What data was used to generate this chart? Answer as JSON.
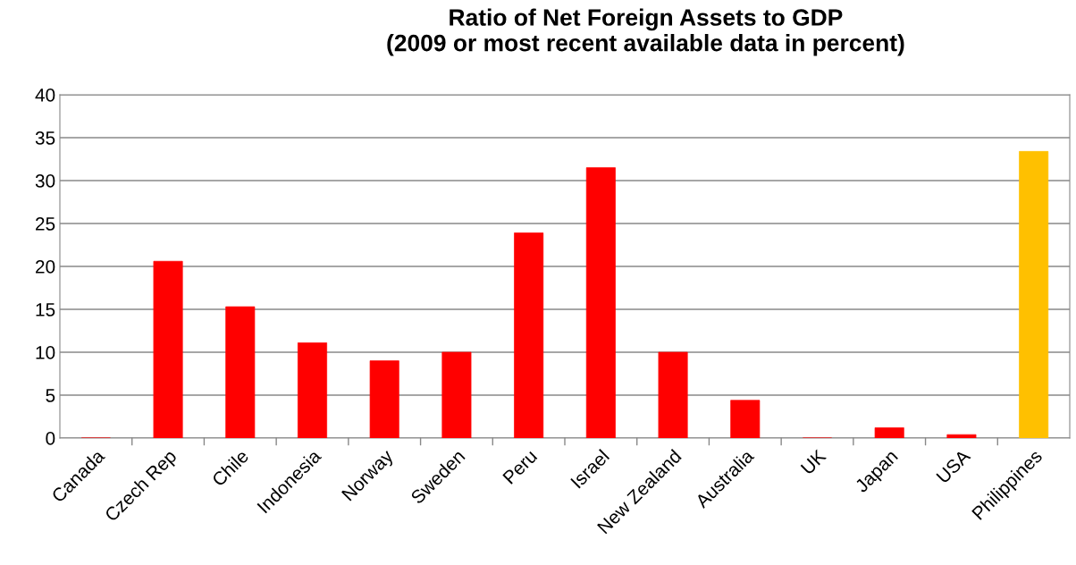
{
  "chart_data": {
    "type": "bar",
    "title": "Ratio of Net Foreign Assets to GDP\n(2009 or most recent available data in percent)",
    "categories": [
      "Canada",
      "Czech Rep",
      "Chile",
      "Indonesia",
      "Norway",
      "Sweden",
      "Peru",
      "Israel",
      "New Zealand",
      "Australia",
      "UK",
      "Japan",
      "USA",
      "Philippines"
    ],
    "values": [
      0,
      20.6,
      15.3,
      11.1,
      9.0,
      10.0,
      23.9,
      31.5,
      10.0,
      4.4,
      0,
      1.2,
      0.4,
      33.4
    ],
    "colors": [
      "#ff0000",
      "#ff0000",
      "#ff0000",
      "#ff0000",
      "#ff0000",
      "#ff0000",
      "#ff0000",
      "#ff0000",
      "#ff0000",
      "#ff0000",
      "#ff0000",
      "#ff0000",
      "#ff0000",
      "#ffc000"
    ],
    "ylim": [
      0,
      40
    ],
    "yticks": [
      0,
      5,
      10,
      15,
      20,
      25,
      30,
      35,
      40
    ],
    "grid": "y"
  }
}
